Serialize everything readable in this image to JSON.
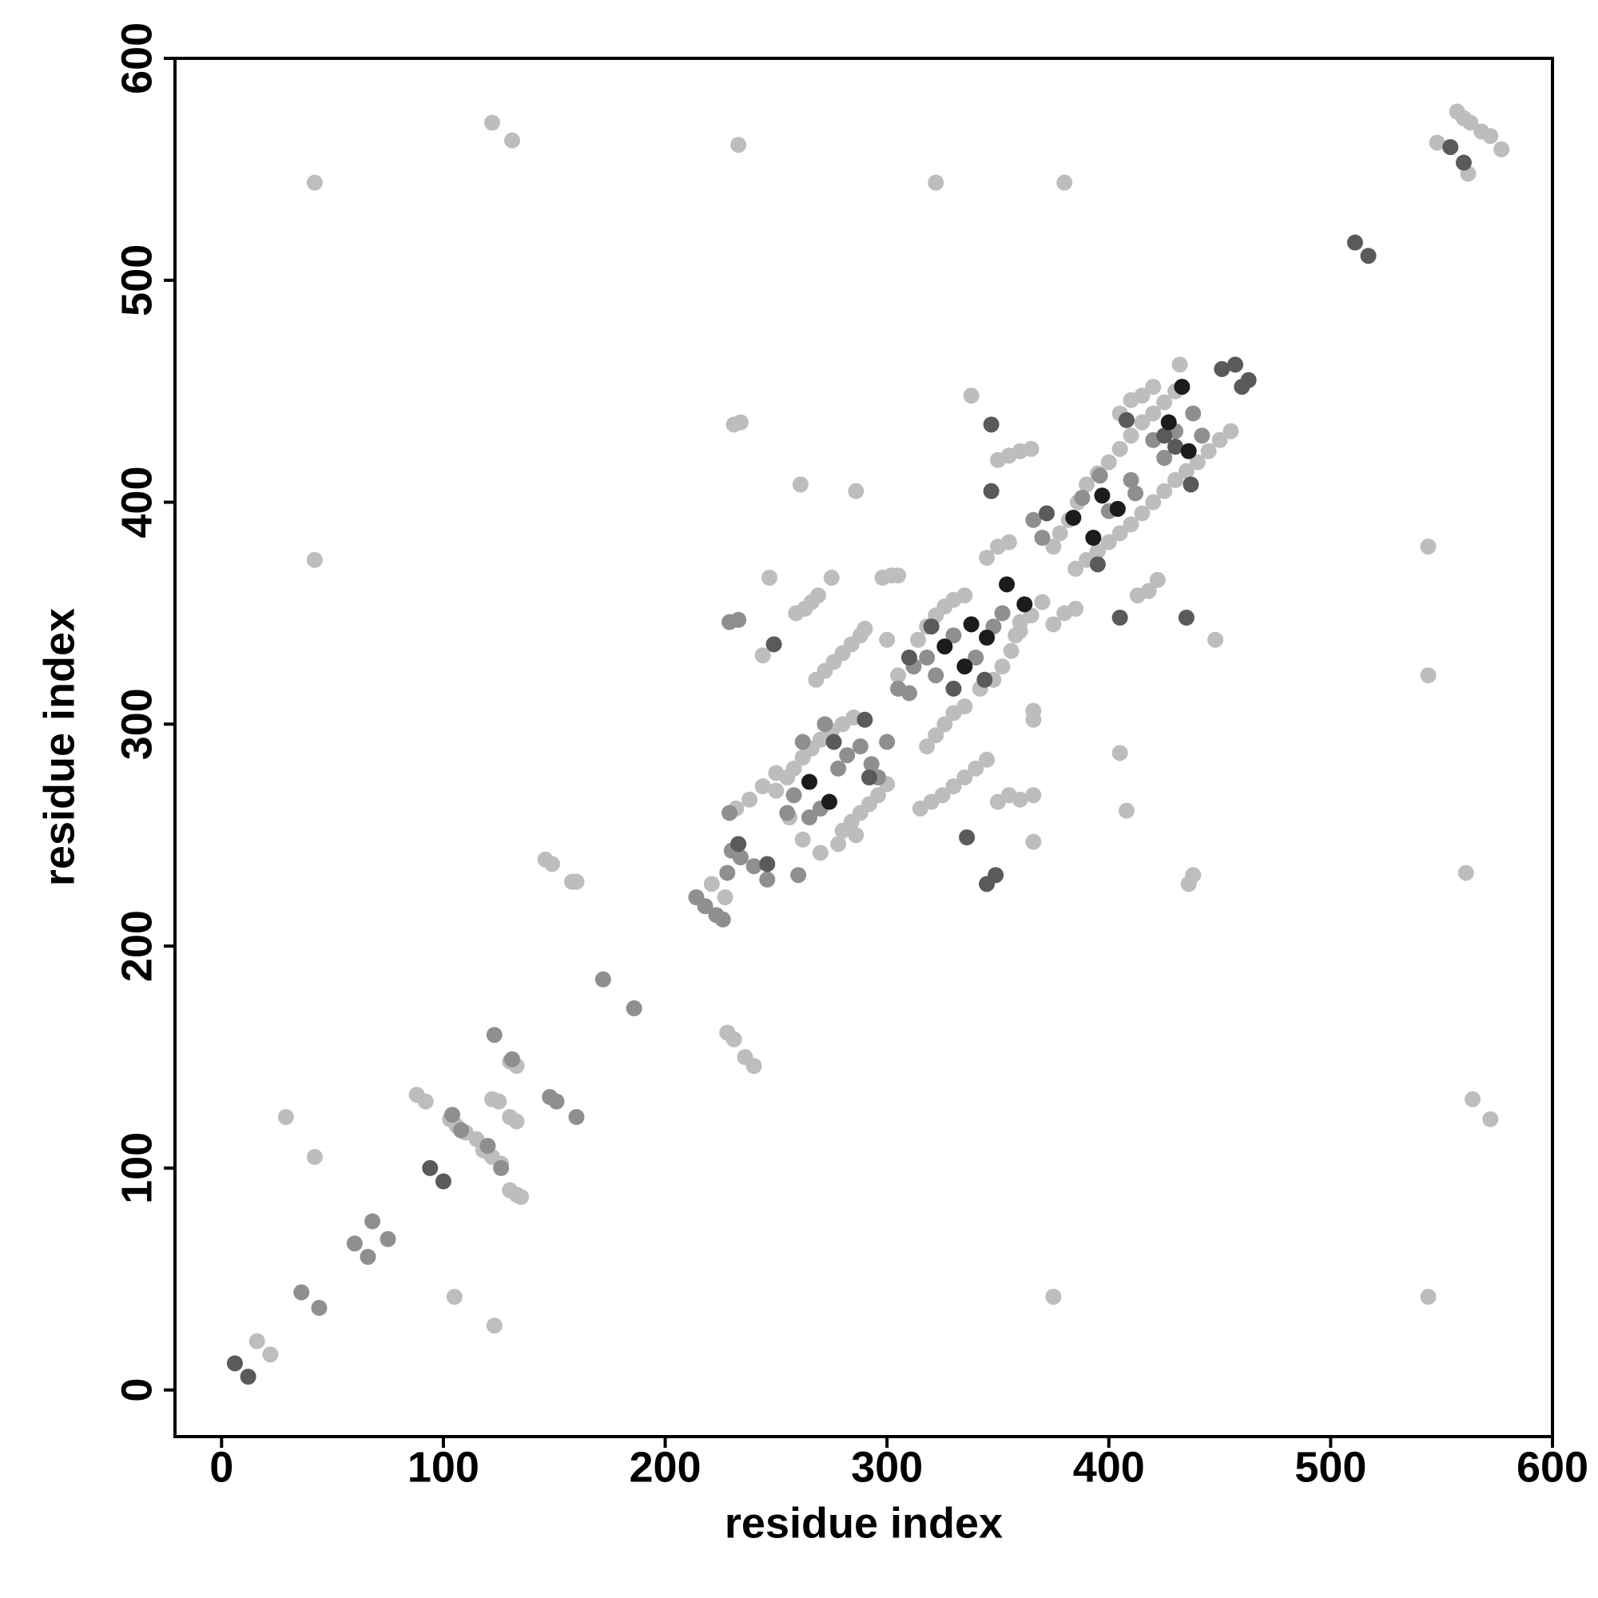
{
  "chart_data": {
    "type": "scatter",
    "x_label": "residue index",
    "y_label": "residue index",
    "xlim": [
      -21,
      600
    ],
    "ylim": [
      -21,
      600
    ],
    "xticks": [
      0,
      100,
      200,
      300,
      400,
      500,
      600
    ],
    "yticks": [
      0,
      100,
      200,
      300,
      400,
      500,
      600
    ],
    "grid": false,
    "series": [
      {
        "color": "#bdbdbd",
        "x": [
          16,
          22,
          29,
          42,
          42,
          42,
          105,
          122,
          131,
          123,
          88,
          92,
          103,
          106,
          110,
          115,
          118,
          122,
          126,
          122,
          125,
          130,
          133,
          130,
          133,
          135,
          130,
          133,
          146,
          149,
          160,
          158,
          228,
          231,
          236,
          240,
          221,
          227,
          233,
          231,
          234,
          261,
          247,
          259,
          263,
          266,
          269,
          244,
          268,
          272,
          276,
          280,
          284,
          288,
          290,
          286,
          275,
          298,
          302,
          305,
          300,
          338,
          350,
          355,
          360,
          365,
          380,
          322,
          405,
          408,
          375,
          366,
          366,
          366,
          366,
          315,
          320,
          325,
          330,
          335,
          340,
          345,
          350,
          355,
          360,
          438,
          436,
          448,
          544,
          544,
          544,
          561,
          564,
          572,
          548,
          557,
          560,
          563,
          568,
          572,
          577,
          562,
          250,
          255,
          258,
          262,
          266,
          270,
          275,
          280,
          285,
          280,
          284,
          288,
          292,
          296,
          300,
          305,
          310,
          314,
          318,
          322,
          326,
          330,
          335,
          318,
          322,
          326,
          330,
          335,
          342,
          348,
          352,
          356,
          358,
          360,
          375,
          378,
          382,
          386,
          390,
          395,
          400,
          405,
          410,
          415,
          420,
          425,
          430,
          385,
          390,
          395,
          400,
          405,
          410,
          415,
          420,
          425,
          430,
          435,
          440,
          445,
          450,
          455,
          345,
          350,
          355,
          360,
          365,
          370,
          375,
          380,
          385,
          232,
          238,
          244,
          250,
          256,
          262,
          270,
          278,
          286,
          413,
          418,
          422,
          432,
          405,
          410,
          415,
          420
        ],
        "y": [
          22,
          16,
          123,
          105,
          374,
          544,
          42,
          571,
          563,
          29,
          133,
          130,
          122,
          119,
          116,
          113,
          108,
          105,
          102,
          131,
          130,
          123,
          121,
          90,
          88,
          87,
          148,
          146,
          239,
          237,
          229,
          229,
          161,
          158,
          150,
          146,
          228,
          222,
          561,
          435,
          436,
          408,
          366,
          350,
          352,
          355,
          358,
          331,
          320,
          324,
          328,
          332,
          336,
          340,
          343,
          405,
          366,
          366,
          367,
          367,
          338,
          448,
          419,
          421,
          423,
          424,
          544,
          544,
          287,
          261,
          42,
          247,
          268,
          306,
          302,
          262,
          265,
          268,
          272,
          276,
          280,
          284,
          265,
          268,
          266,
          232,
          228,
          338,
          380,
          322,
          42,
          233,
          131,
          122,
          562,
          576,
          573,
          571,
          567,
          565,
          559,
          548,
          270,
          276,
          280,
          285,
          289,
          293,
          297,
          300,
          303,
          252,
          256,
          260,
          264,
          268,
          273,
          322,
          330,
          338,
          344,
          349,
          353,
          356,
          358,
          290,
          295,
          300,
          305,
          308,
          316,
          320,
          326,
          333,
          340,
          346,
          380,
          386,
          392,
          400,
          408,
          413,
          418,
          424,
          430,
          436,
          440,
          445,
          450,
          370,
          374,
          378,
          382,
          386,
          390,
          395,
          400,
          405,
          410,
          414,
          418,
          423,
          428,
          432,
          375,
          380,
          382,
          342,
          349,
          355,
          345,
          350,
          352,
          262,
          266,
          272,
          278,
          258,
          248,
          242,
          246,
          250,
          358,
          360,
          365,
          462,
          440,
          446,
          448,
          452
        ]
      },
      {
        "color": "#8f8f8f",
        "x": [
          36,
          44,
          60,
          66,
          68,
          75,
          104,
          108,
          120,
          126,
          123,
          131,
          148,
          151,
          160,
          172,
          186,
          214,
          218,
          223,
          226,
          229,
          233,
          230,
          234,
          240,
          246,
          228,
          260,
          255,
          258,
          265,
          270,
          278,
          282,
          288,
          293,
          296,
          300,
          305,
          310,
          312,
          318,
          322,
          330,
          340,
          348,
          352,
          366,
          370,
          388,
          396,
          400,
          410,
          412,
          420,
          425,
          430,
          438,
          442,
          229,
          272,
          262
        ],
        "y": [
          44,
          37,
          66,
          60,
          76,
          68,
          124,
          117,
          110,
          100,
          160,
          149,
          132,
          130,
          123,
          185,
          172,
          222,
          218,
          214,
          212,
          346,
          347,
          243,
          240,
          236,
          230,
          233,
          232,
          260,
          268,
          258,
          262,
          280,
          286,
          290,
          282,
          276,
          292,
          316,
          314,
          326,
          330,
          322,
          340,
          330,
          344,
          350,
          392,
          384,
          402,
          412,
          396,
          410,
          404,
          428,
          420,
          432,
          440,
          430,
          260,
          300,
          292
        ]
      },
      {
        "color": "#5a5a5a",
        "x": [
          6,
          12,
          94,
          100,
          249,
          349,
          345,
          336,
          347,
          347,
          405,
          435,
          511,
          517,
          554,
          560,
          451,
          457,
          460,
          463,
          233,
          246,
          276,
          292,
          320,
          344,
          330,
          372,
          395,
          408,
          437,
          425,
          430,
          290,
          310
        ],
        "y": [
          12,
          6,
          100,
          94,
          336,
          232,
          228,
          249,
          435,
          405,
          348,
          348,
          517,
          511,
          560,
          553,
          460,
          462,
          452,
          455,
          246,
          237,
          292,
          276,
          344,
          320,
          316,
          395,
          372,
          437,
          408,
          430,
          425,
          302,
          330
        ]
      },
      {
        "color": "#1c1c1c",
        "x": [
          265,
          274,
          326,
          335,
          345,
          338,
          354,
          362,
          384,
          393,
          397,
          404,
          433,
          436,
          427
        ],
        "y": [
          274,
          265,
          335,
          326,
          339,
          345,
          363,
          354,
          393,
          384,
          403,
          397,
          452,
          423,
          436
        ]
      }
    ]
  }
}
